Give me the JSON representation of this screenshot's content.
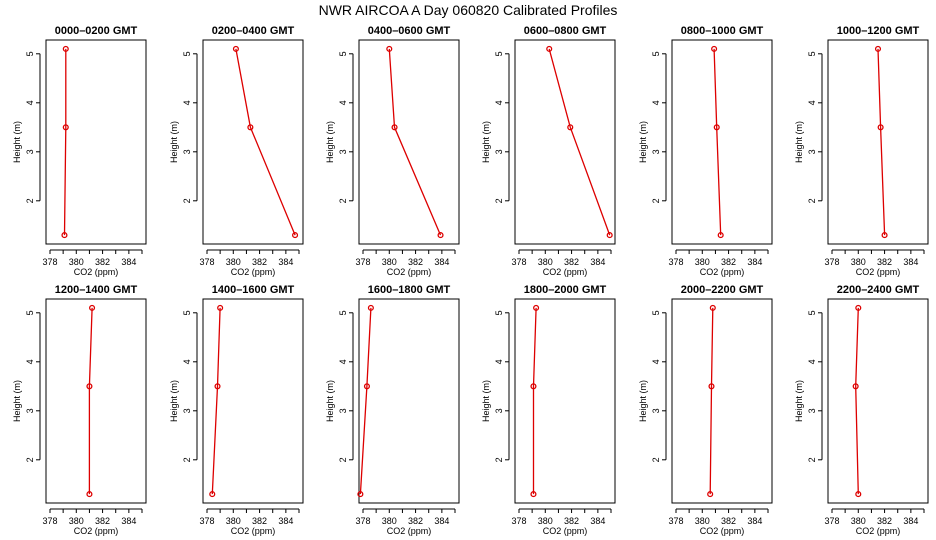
{
  "page": {
    "title": "NWR AIRCOA A  Day 060820  Calibrated Profiles"
  },
  "chart_data": [
    {
      "type": "line",
      "title": "0000–0200 GMT",
      "xlabel": "CO2 (ppm)",
      "ylabel": "Height (m)",
      "xlim": [
        378,
        385
      ],
      "ylim": [
        1.2,
        5.2
      ],
      "xticks": [
        378,
        380,
        382,
        384
      ],
      "yticks": [
        2,
        3,
        4,
        5
      ],
      "series": [
        {
          "x": [
            379.2,
            379.2,
            379.1
          ],
          "y": [
            5.1,
            3.5,
            1.3
          ]
        }
      ]
    },
    {
      "type": "line",
      "title": "0200–0400 GMT",
      "xlabel": "CO2 (ppm)",
      "ylabel": "Height (m)",
      "xlim": [
        378,
        385
      ],
      "ylim": [
        1.2,
        5.2
      ],
      "xticks": [
        378,
        380,
        382,
        384
      ],
      "yticks": [
        2,
        3,
        4,
        5
      ],
      "series": [
        {
          "x": [
            380.2,
            381.3,
            384.7
          ],
          "y": [
            5.1,
            3.5,
            1.3
          ]
        }
      ]
    },
    {
      "type": "line",
      "title": "0400–0600 GMT",
      "xlabel": "CO2 (ppm)",
      "ylabel": "Height (m)",
      "xlim": [
        378,
        385
      ],
      "ylim": [
        1.2,
        5.2
      ],
      "xticks": [
        378,
        380,
        382,
        384
      ],
      "yticks": [
        2,
        3,
        4,
        5
      ],
      "series": [
        {
          "x": [
            380.0,
            380.4,
            383.9
          ],
          "y": [
            5.1,
            3.5,
            1.3
          ]
        }
      ]
    },
    {
      "type": "line",
      "title": "0600–0800 GMT",
      "xlabel": "CO2 (ppm)",
      "ylabel": "Height (m)",
      "xlim": [
        378,
        385
      ],
      "ylim": [
        1.2,
        5.2
      ],
      "xticks": [
        378,
        380,
        382,
        384
      ],
      "yticks": [
        2,
        3,
        4,
        5
      ],
      "series": [
        {
          "x": [
            380.3,
            381.9,
            384.9
          ],
          "y": [
            5.1,
            3.5,
            1.3
          ]
        }
      ]
    },
    {
      "type": "line",
      "title": "0800–1000 GMT",
      "xlabel": "CO2 (ppm)",
      "ylabel": "Height (m)",
      "xlim": [
        378,
        385
      ],
      "ylim": [
        1.2,
        5.2
      ],
      "xticks": [
        378,
        380,
        382,
        384
      ],
      "yticks": [
        2,
        3,
        4,
        5
      ],
      "series": [
        {
          "x": [
            380.9,
            381.1,
            381.4
          ],
          "y": [
            5.1,
            3.5,
            1.3
          ]
        }
      ]
    },
    {
      "type": "line",
      "title": "1000–1200 GMT",
      "xlabel": "CO2 (ppm)",
      "ylabel": "Height (m)",
      "xlim": [
        378,
        385
      ],
      "ylim": [
        1.2,
        5.2
      ],
      "xticks": [
        378,
        380,
        382,
        384
      ],
      "yticks": [
        2,
        3,
        4,
        5
      ],
      "series": [
        {
          "x": [
            381.5,
            381.7,
            382.0
          ],
          "y": [
            5.1,
            3.5,
            1.3
          ]
        }
      ]
    },
    {
      "type": "line",
      "title": "1200–1400 GMT",
      "xlabel": "CO2 (ppm)",
      "ylabel": "Height (m)",
      "xlim": [
        378,
        385
      ],
      "ylim": [
        1.2,
        5.2
      ],
      "xticks": [
        378,
        380,
        382,
        384
      ],
      "yticks": [
        2,
        3,
        4,
        5
      ],
      "series": [
        {
          "x": [
            381.2,
            381.0,
            381.0
          ],
          "y": [
            5.1,
            3.5,
            1.3
          ]
        }
      ]
    },
    {
      "type": "line",
      "title": "1400–1600 GMT",
      "xlabel": "CO2 (ppm)",
      "ylabel": "Height (m)",
      "xlim": [
        378,
        385
      ],
      "ylim": [
        1.2,
        5.2
      ],
      "xticks": [
        378,
        380,
        382,
        384
      ],
      "yticks": [
        2,
        3,
        4,
        5
      ],
      "series": [
        {
          "x": [
            379.0,
            378.8,
            378.4
          ],
          "y": [
            5.1,
            3.5,
            1.3
          ]
        }
      ]
    },
    {
      "type": "line",
      "title": "1600–1800 GMT",
      "xlabel": "CO2 (ppm)",
      "ylabel": "Height (m)",
      "xlim": [
        378,
        385
      ],
      "ylim": [
        1.2,
        5.2
      ],
      "xticks": [
        378,
        380,
        382,
        384
      ],
      "yticks": [
        2,
        3,
        4,
        5
      ],
      "series": [
        {
          "x": [
            378.6,
            378.3,
            377.8
          ],
          "y": [
            5.1,
            3.5,
            1.3
          ]
        }
      ]
    },
    {
      "type": "line",
      "title": "1800–2000 GMT",
      "xlabel": "CO2 (ppm)",
      "ylabel": "Height (m)",
      "xlim": [
        378,
        385
      ],
      "ylim": [
        1.2,
        5.2
      ],
      "xticks": [
        378,
        380,
        382,
        384
      ],
      "yticks": [
        2,
        3,
        4,
        5
      ],
      "series": [
        {
          "x": [
            379.3,
            379.1,
            379.1
          ],
          "y": [
            5.1,
            3.5,
            1.3
          ]
        }
      ]
    },
    {
      "type": "line",
      "title": "2000–2200 GMT",
      "xlabel": "CO2 (ppm)",
      "ylabel": "Height (m)",
      "xlim": [
        378,
        385
      ],
      "ylim": [
        1.2,
        5.2
      ],
      "xticks": [
        378,
        380,
        382,
        384
      ],
      "yticks": [
        2,
        3,
        4,
        5
      ],
      "series": [
        {
          "x": [
            380.8,
            380.7,
            380.6
          ],
          "y": [
            5.1,
            3.5,
            1.3
          ]
        }
      ]
    },
    {
      "type": "line",
      "title": "2200–2400 GMT",
      "xlabel": "CO2 (ppm)",
      "ylabel": "Height (m)",
      "xlim": [
        378,
        385
      ],
      "ylim": [
        1.2,
        5.2
      ],
      "xticks": [
        378,
        380,
        382,
        384
      ],
      "yticks": [
        2,
        3,
        4,
        5
      ],
      "series": [
        {
          "x": [
            380.0,
            379.8,
            380.0
          ],
          "y": [
            5.1,
            3.5,
            1.3
          ]
        }
      ]
    }
  ],
  "colors": {
    "series": "#dd0000",
    "axis": "#000000",
    "background": "#ffffff"
  }
}
